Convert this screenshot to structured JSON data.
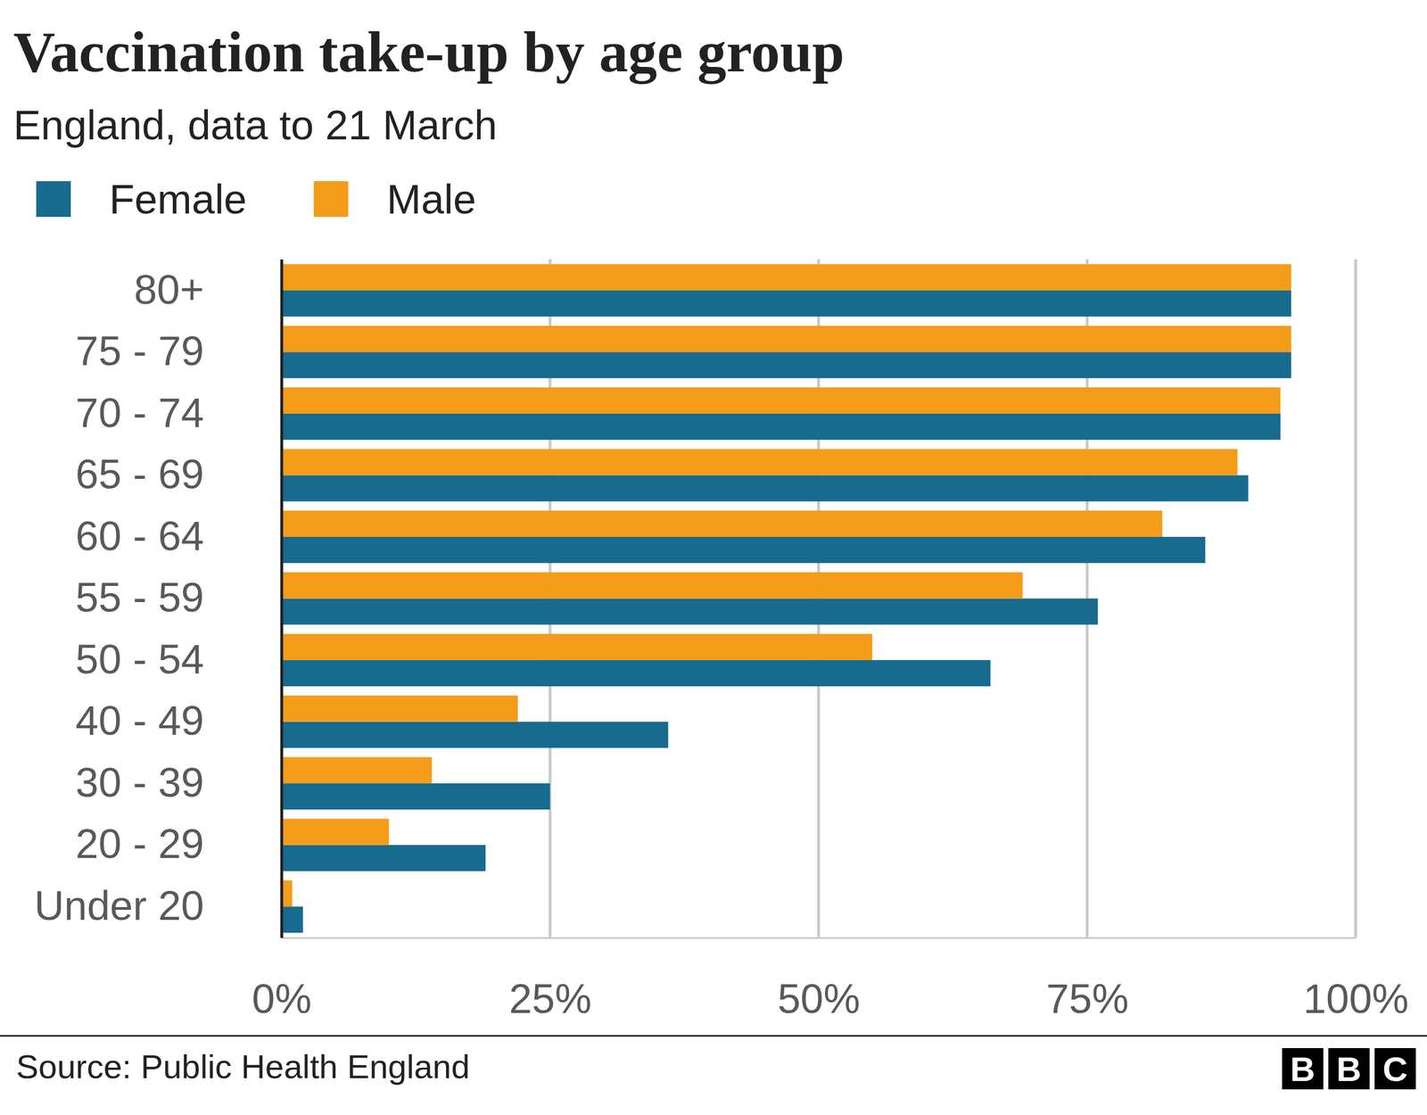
{
  "chart_data": {
    "type": "bar",
    "orientation": "horizontal",
    "title": "Vaccination take-up by age group",
    "subtitle": "England, data to 21 March",
    "categories": [
      "80+",
      "75 - 79",
      "70 - 74",
      "65 - 69",
      "60 - 64",
      "55 - 59",
      "50 - 54",
      "40 - 49",
      "30 - 39",
      "20 - 29",
      "Under 20"
    ],
    "series": [
      {
        "name": "Female",
        "color": "#176b8e",
        "values": [
          94,
          94,
          93,
          90,
          86,
          76,
          66,
          36,
          25,
          19,
          2
        ]
      },
      {
        "name": "Male",
        "color": "#f59c1a",
        "values": [
          94,
          94,
          93,
          89,
          82,
          69,
          55,
          22,
          14,
          10,
          1
        ]
      }
    ],
    "xlim": [
      0,
      100
    ],
    "xticks": [
      {
        "value": 0,
        "label": "0%"
      },
      {
        "value": 25,
        "label": "25%"
      },
      {
        "value": 50,
        "label": "50%"
      },
      {
        "value": 75,
        "label": "75%"
      },
      {
        "value": 100,
        "label": "100%"
      }
    ],
    "grid": true,
    "legend": "top-left",
    "source": "Source: Public Health England",
    "logo": "BBC"
  }
}
